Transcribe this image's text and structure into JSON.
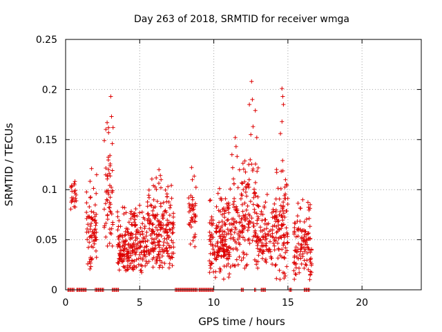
{
  "chart_data": {
    "type": "scatter",
    "title": "Day 263 of 2018, SRMTID for receiver wmga",
    "xlabel": "GPS time / hours",
    "ylabel": "SRMTID / TECUs",
    "xlim": [
      0,
      24
    ],
    "ylim": [
      0,
      0.25
    ],
    "xticks": [
      0,
      5,
      10,
      15,
      20
    ],
    "yticks": [
      0,
      0.05,
      0.1,
      0.15,
      0.2,
      0.25
    ],
    "ytick_labels": [
      "0",
      "0.05",
      "0.1",
      "0.15",
      "0.2",
      "0.25"
    ],
    "grid": true,
    "marker": "+",
    "color": "#dd0000",
    "series": [
      {
        "name": "SRMTID",
        "clusters": [
          {
            "x": [
              0.35,
              0.75
            ],
            "y": [
              0.08,
              0.115
            ],
            "n": 22
          },
          {
            "x": [
              1.4,
              2.1
            ],
            "y": [
              0.02,
              0.12
            ],
            "n": 70
          },
          {
            "x": [
              2.6,
              3.2
            ],
            "y": [
              0.04,
              0.17
            ],
            "n": 55
          },
          {
            "x": [
              3.5,
              5.5
            ],
            "y": [
              0.015,
              0.09
            ],
            "n": 220
          },
          {
            "x": [
              5.5,
              7.3
            ],
            "y": [
              0.02,
              0.12
            ],
            "n": 200
          },
          {
            "x": [
              8.3,
              8.8
            ],
            "y": [
              0.04,
              0.12
            ],
            "n": 40
          },
          {
            "x": [
              9.7,
              11.2
            ],
            "y": [
              0.01,
              0.11
            ],
            "n": 170
          },
          {
            "x": [
              11.2,
              13.0
            ],
            "y": [
              0.02,
              0.15
            ],
            "n": 170
          },
          {
            "x": [
              13.0,
              14.2
            ],
            "y": [
              0.02,
              0.1
            ],
            "n": 90
          },
          {
            "x": [
              14.2,
              15.0
            ],
            "y": [
              0.01,
              0.14
            ],
            "n": 90
          },
          {
            "x": [
              15.4,
              16.6
            ],
            "y": [
              0.01,
              0.09
            ],
            "n": 110
          }
        ],
        "highlights": [
          {
            "x": 3.05,
            "y": 0.193
          },
          {
            "x": 3.1,
            "y": 0.173
          },
          {
            "x": 3.2,
            "y": 0.162
          },
          {
            "x": 2.8,
            "y": 0.167
          },
          {
            "x": 2.9,
            "y": 0.157
          },
          {
            "x": 3.15,
            "y": 0.146
          },
          {
            "x": 12.55,
            "y": 0.208
          },
          {
            "x": 12.6,
            "y": 0.19
          },
          {
            "x": 12.4,
            "y": 0.185
          },
          {
            "x": 12.8,
            "y": 0.179
          },
          {
            "x": 12.65,
            "y": 0.163
          },
          {
            "x": 12.5,
            "y": 0.155
          },
          {
            "x": 12.9,
            "y": 0.152
          },
          {
            "x": 14.6,
            "y": 0.201
          },
          {
            "x": 14.65,
            "y": 0.193
          },
          {
            "x": 14.7,
            "y": 0.185
          },
          {
            "x": 14.6,
            "y": 0.168
          },
          {
            "x": 14.5,
            "y": 0.156
          },
          {
            "x": 11.45,
            "y": 0.152
          },
          {
            "x": 11.5,
            "y": 0.143
          },
          {
            "x": 6.3,
            "y": 0.12
          },
          {
            "x": 8.5,
            "y": 0.122
          },
          {
            "x": 1.75,
            "y": 0.121
          },
          {
            "x": 16.0,
            "y": 0.09
          },
          {
            "x": 16.5,
            "y": 0.085
          },
          {
            "x": 16.6,
            "y": 0.026
          }
        ],
        "zero_segments": [
          [
            0.15,
            0.6
          ],
          [
            0.75,
            1.4
          ],
          [
            2.0,
            2.6
          ],
          [
            3.15,
            3.6
          ],
          [
            7.4,
            8.9
          ],
          [
            9.0,
            10.0
          ],
          [
            11.85,
            12.0
          ],
          [
            12.75,
            12.85
          ],
          [
            13.2,
            13.5
          ],
          [
            15.1,
            15.3
          ],
          [
            16.1,
            16.5
          ]
        ]
      }
    ]
  }
}
